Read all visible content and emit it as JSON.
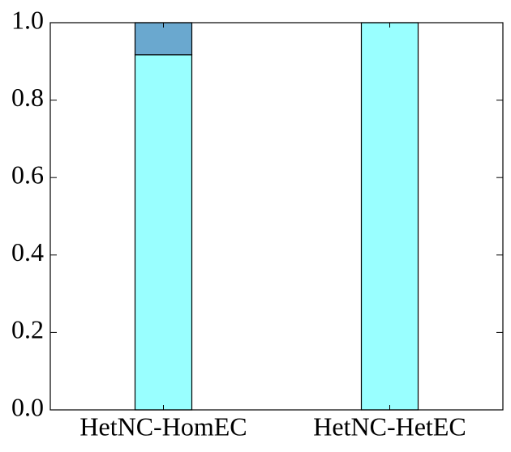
{
  "chart_data": {
    "type": "stacked_bar",
    "categories": [
      "HetNC-HomEC",
      "HetNC-HetEC"
    ],
    "series": [
      {
        "color": "#99ffff",
        "values": [
          0.917,
          1.0
        ]
      },
      {
        "color": "#6aa8cf",
        "values": [
          0.083,
          0.0
        ]
      }
    ],
    "ylim": [
      0,
      1
    ],
    "yticks": [
      {
        "value": 0,
        "label": "0.0"
      },
      0.2,
      0.4,
      0.6,
      0.8,
      {
        "value": 1,
        "label": "1.0"
      }
    ]
  }
}
